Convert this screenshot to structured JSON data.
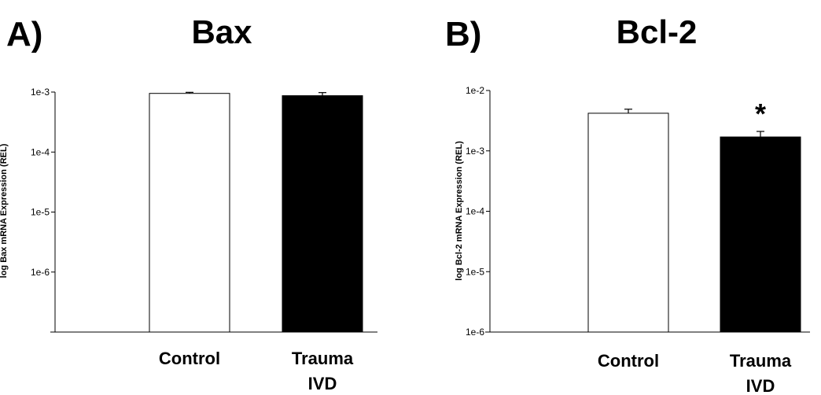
{
  "chart_data": [
    {
      "type": "bar",
      "panel": "A)",
      "title": "Bax",
      "ylabel": "log Bax mRNA Expression (REL)",
      "yscale": "log",
      "ylim": [
        1e-07,
        0.001
      ],
      "yticks": [
        1e-06,
        1e-05,
        0.0001,
        0.001
      ],
      "ytick_labels": [
        "1e-6",
        "1e-5",
        "1e-4",
        "1e-3"
      ],
      "categories": [
        "Control",
        "Trauma IVD"
      ],
      "category_lines": [
        [
          "Control"
        ],
        [
          "Trauma",
          "IVD"
        ]
      ],
      "values": [
        0.00095,
        0.00087
      ],
      "errors_upper": [
        0.00099,
        0.00098
      ],
      "bar_colors": [
        "#ffffff",
        "#000000"
      ],
      "annotations": [
        "",
        ""
      ]
    },
    {
      "type": "bar",
      "panel": "B)",
      "title": "Bcl-2",
      "ylabel": "log Bcl-2 mRNA Expression (REL)",
      "yscale": "log",
      "ylim": [
        1e-06,
        0.01
      ],
      "yticks": [
        1e-06,
        1e-05,
        0.0001,
        0.001,
        0.01
      ],
      "ytick_labels": [
        "1e-6",
        "1e-5",
        "1e-4",
        "1e-3",
        "1e-2"
      ],
      "categories": [
        "Control",
        "Trauma IVD"
      ],
      "category_lines": [
        [
          "Control"
        ],
        [
          "Trauma",
          "IVD"
        ]
      ],
      "values": [
        0.0042,
        0.0017
      ],
      "errors_upper": [
        0.0049,
        0.0021
      ],
      "bar_colors": [
        "#ffffff",
        "#000000"
      ],
      "annotations": [
        "",
        "*"
      ]
    }
  ]
}
